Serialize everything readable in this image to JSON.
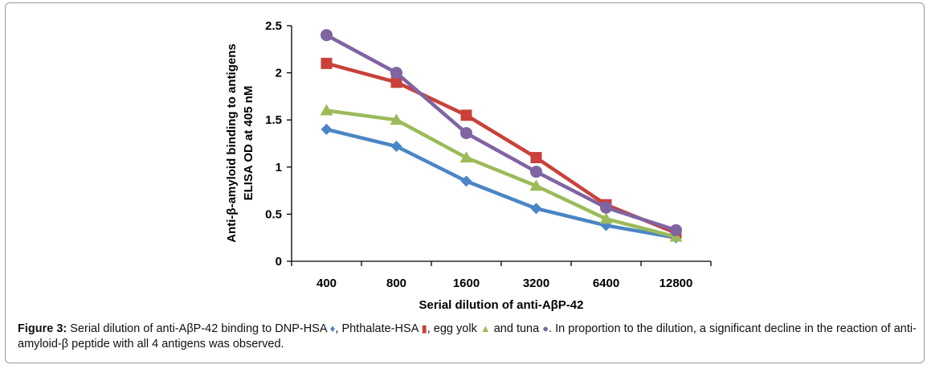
{
  "chart_data": {
    "type": "line",
    "categories": [
      "400",
      "800",
      "1600",
      "3200",
      "6400",
      "12800"
    ],
    "series": [
      {
        "color": "#4a86c5",
        "marker": "diamond",
        "values": [
          1.4,
          1.22,
          0.85,
          0.56,
          0.38,
          0.25
        ]
      },
      {
        "color": "#c9413a",
        "marker": "square",
        "values": [
          2.1,
          1.9,
          1.55,
          1.1,
          0.6,
          0.3
        ]
      },
      {
        "color": "#9bbb59",
        "marker": "triangle",
        "values": [
          1.6,
          1.5,
          1.1,
          0.8,
          0.45,
          0.26
        ]
      },
      {
        "color": "#8064a2",
        "marker": "circle",
        "values": [
          2.4,
          2.0,
          1.36,
          0.95,
          0.57,
          0.33
        ]
      }
    ],
    "xlabel": "Serial dilution of anti-AβP-42",
    "ylabel_line1": "Anti-β-amyloid binding to antigens",
    "ylabel_line2": "ELISA OD at 405 nM",
    "ylim": [
      0,
      2.5
    ],
    "yticks": [
      0,
      0.5,
      1,
      1.5,
      2,
      2.5
    ],
    "ytick_labels": [
      "0",
      "0.5",
      "1",
      "1.5",
      "2",
      "2.5"
    ],
    "grid": false,
    "legend": "none"
  },
  "caption": {
    "label": "Figure 3:",
    "part1": " Serial dilution of anti-AβP-42 binding to DNP-HSA ",
    "sym1": "♦",
    "part2": ", Phthalate-HSA ",
    "sym2": "▮",
    "part3": ", egg yolk ",
    "sym3": "▲",
    "part4": " and tuna ",
    "sym4": "●",
    "part5": ". In proportion to the dilution, a significant decline in the reaction of anti-amyloid-β peptide with all 4 antigens was observed."
  }
}
